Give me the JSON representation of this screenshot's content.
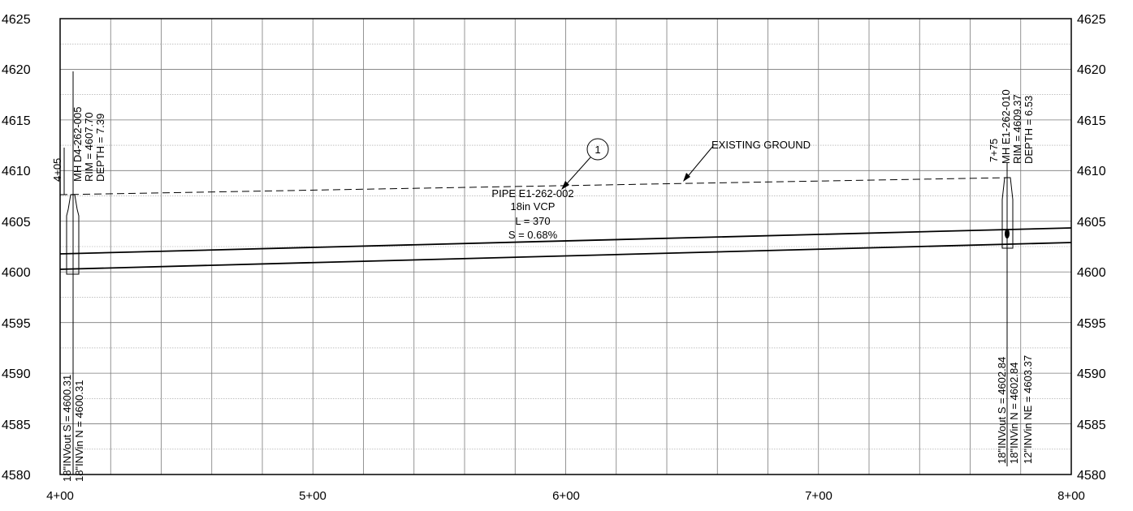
{
  "elevations": [
    "4625",
    "4620",
    "4615",
    "4610",
    "4605",
    "4600",
    "4595",
    "4590",
    "4585",
    "4580"
  ],
  "stations": [
    "4+00",
    "5+00",
    "6+00",
    "7+00",
    "8+00"
  ],
  "profile": {
    "start_station": 400,
    "end_station": 800,
    "elev_min": 4580,
    "elev_max": 4625
  },
  "manhole_left": {
    "station_value": 405,
    "station_label": "4+05",
    "id_label": "MH D4-262-005",
    "rim_label": "RIM = 4607.70",
    "depth_label": "DEPTH = 7.39",
    "rim": 4607.7,
    "invert": 4600.31,
    "inv_out_label": "18\"INVout S = 4600.31",
    "inv_in_label": "18\"INVin N = 4600.31"
  },
  "manhole_right": {
    "station_value": 775,
    "station_label": "7+75",
    "id_label": "MH E1-262-010",
    "rim_label": "RIM = 4609.37",
    "depth_label": "DEPTH = 6.53",
    "rim": 4609.37,
    "invert": 4602.84,
    "inv_out_label": "18\"INVout S = 4602.84",
    "inv_in_n_label": "18\"INVin N = 4602.84",
    "inv_in_ne_label": "12\"INVin NE = 4603.37"
  },
  "pipe": {
    "id_label": "PIPE E1-262-002",
    "size_label": "18in VCP",
    "length_label": "L = 370",
    "slope_label": "S = 0.68%",
    "diameter_ft": 1.5
  },
  "callout": {
    "number": "1",
    "ground_label": "EXISTING GROUND"
  }
}
